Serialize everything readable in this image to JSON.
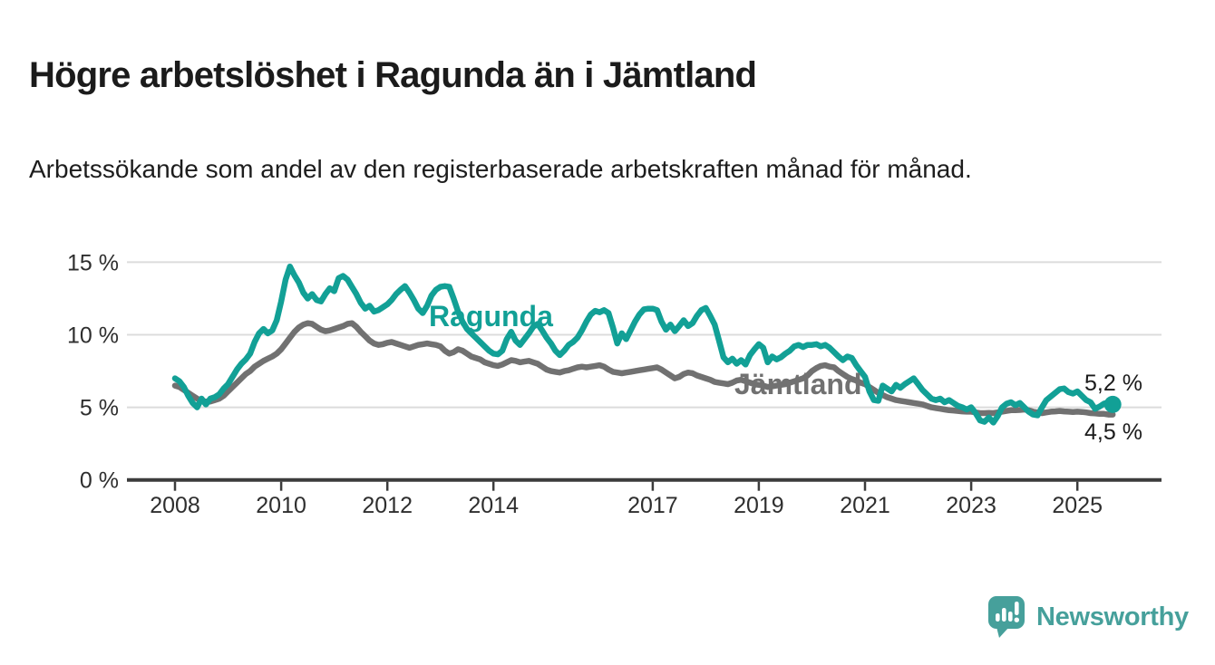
{
  "header": {
    "title": "Högre arbetslöshet i Ragunda än i Jämtland",
    "subtitle": "Arbetssökande som andel av den registerbaserade arbetskraften månad för månad."
  },
  "colors": {
    "ragunda": "#12a096",
    "jamtland": "#717171",
    "title": "#1b1b1b",
    "axis": "#3c3c3c",
    "grid": "#dcdcdc",
    "tick_label": "#2e2e2e",
    "value_label": "#1b1b1b",
    "logo": "#46a09b"
  },
  "chart_data": {
    "type": "line",
    "unit": "%",
    "frequency": "monthly",
    "x_start_year": 2008,
    "x_end_label_approx": "2025-09",
    "ylim": [
      0,
      16.5
    ],
    "grid": "horizontal",
    "legend_position": "inline-labels",
    "x_tick_labels": [
      "2008",
      "2010",
      "2012",
      "2014",
      "2017",
      "2019",
      "2021",
      "2023",
      "2025"
    ],
    "y_tick_labels": [
      {
        "value": 0,
        "label": "0 %"
      },
      {
        "value": 5,
        "label": "5 %"
      },
      {
        "value": 10,
        "label": "10 %"
      },
      {
        "value": 15,
        "label": "15 %"
      }
    ],
    "series": [
      {
        "name": "Ragunda",
        "color_key": "ragunda",
        "label_x": 473,
        "label_y": 360,
        "end_dot": true,
        "end_label": {
          "text": "5,2 %",
          "x": 1196,
          "y": 431
        },
        "latest_value": 5.2,
        "values": [
          7.0,
          6.8,
          6.4,
          5.8,
          5.3,
          5.0,
          5.6,
          5.2,
          5.6,
          5.7,
          5.9,
          6.3,
          6.6,
          7.1,
          7.6,
          8.0,
          8.3,
          8.7,
          9.5,
          10.1,
          10.4,
          10.1,
          10.3,
          11.0,
          12.3,
          13.8,
          14.7,
          14.1,
          13.6,
          12.9,
          12.5,
          12.8,
          12.4,
          12.3,
          12.8,
          13.2,
          13.0,
          13.9,
          14.05,
          13.8,
          13.3,
          12.8,
          12.2,
          11.8,
          12.0,
          11.6,
          11.7,
          11.9,
          12.1,
          12.4,
          12.8,
          13.1,
          13.35,
          12.9,
          12.4,
          11.8,
          11.5,
          12.0,
          12.7,
          13.1,
          13.3,
          13.35,
          13.3,
          12.5,
          11.6,
          10.9,
          10.4,
          10.1,
          9.8,
          9.5,
          9.2,
          8.9,
          8.7,
          8.65,
          8.9,
          9.7,
          10.2,
          9.6,
          9.3,
          9.7,
          10.1,
          10.55,
          10.75,
          10.3,
          9.8,
          9.4,
          8.9,
          8.6,
          8.9,
          9.3,
          9.5,
          9.8,
          10.3,
          10.9,
          11.4,
          11.65,
          11.55,
          11.7,
          11.5,
          10.5,
          9.4,
          10.1,
          9.7,
          10.3,
          10.9,
          11.4,
          11.75,
          11.8,
          11.8,
          11.7,
          10.9,
          10.35,
          10.7,
          10.25,
          10.6,
          11.0,
          10.6,
          10.8,
          11.3,
          11.7,
          11.85,
          11.3,
          10.7,
          9.6,
          8.45,
          8.1,
          8.35,
          8.0,
          8.25,
          7.95,
          8.6,
          9.0,
          9.35,
          9.1,
          8.1,
          8.5,
          8.3,
          8.45,
          8.7,
          8.9,
          9.2,
          9.3,
          9.15,
          9.3,
          9.3,
          9.35,
          9.2,
          9.3,
          9.1,
          8.8,
          8.5,
          8.25,
          8.5,
          8.4,
          7.9,
          7.5,
          7.1,
          6.1,
          5.5,
          5.45,
          6.5,
          6.3,
          6.1,
          6.55,
          6.35,
          6.6,
          6.8,
          7.0,
          6.6,
          6.2,
          5.9,
          5.6,
          5.5,
          5.6,
          5.35,
          5.5,
          5.3,
          5.1,
          5.0,
          4.85,
          5.0,
          4.6,
          4.1,
          4.0,
          4.3,
          3.95,
          4.4,
          5.0,
          5.25,
          5.35,
          5.15,
          5.3,
          5.0,
          4.7,
          4.5,
          4.45,
          5.0,
          5.5,
          5.75,
          6.0,
          6.25,
          6.3,
          6.05,
          5.95,
          6.1,
          5.8,
          5.5,
          5.35,
          4.9,
          5.05,
          5.25,
          5.35,
          5.2
        ]
      },
      {
        "name": "Jämtland",
        "color_key": "jamtland",
        "label_x": 810,
        "label_y": 435,
        "end_dot": false,
        "end_label": {
          "text": "4,5 %",
          "x": 1196,
          "y": 485
        },
        "latest_value": 4.5,
        "values": [
          6.5,
          6.4,
          6.2,
          6.0,
          5.8,
          5.6,
          5.45,
          5.4,
          5.4,
          5.5,
          5.6,
          5.8,
          6.1,
          6.4,
          6.7,
          7.0,
          7.3,
          7.5,
          7.8,
          8.0,
          8.2,
          8.35,
          8.5,
          8.7,
          9.0,
          9.4,
          9.8,
          10.2,
          10.5,
          10.7,
          10.8,
          10.75,
          10.55,
          10.35,
          10.25,
          10.3,
          10.4,
          10.5,
          10.6,
          10.75,
          10.8,
          10.55,
          10.2,
          9.9,
          9.6,
          9.4,
          9.3,
          9.35,
          9.45,
          9.5,
          9.4,
          9.3,
          9.2,
          9.1,
          9.2,
          9.3,
          9.35,
          9.4,
          9.35,
          9.3,
          9.2,
          8.9,
          8.7,
          8.8,
          9.0,
          8.9,
          8.7,
          8.5,
          8.4,
          8.3,
          8.1,
          8.0,
          7.9,
          7.85,
          7.95,
          8.1,
          8.25,
          8.2,
          8.1,
          8.15,
          8.2,
          8.1,
          8.0,
          7.8,
          7.6,
          7.5,
          7.45,
          7.4,
          7.5,
          7.55,
          7.65,
          7.75,
          7.8,
          7.75,
          7.8,
          7.85,
          7.9,
          7.8,
          7.6,
          7.45,
          7.4,
          7.35,
          7.4,
          7.45,
          7.5,
          7.55,
          7.6,
          7.65,
          7.7,
          7.75,
          7.6,
          7.4,
          7.2,
          7.0,
          7.1,
          7.3,
          7.4,
          7.35,
          7.2,
          7.1,
          7.0,
          6.9,
          6.75,
          6.7,
          6.65,
          6.6,
          6.7,
          6.85,
          6.9,
          6.8,
          6.7,
          6.6,
          6.55,
          6.5,
          6.4,
          6.45,
          6.5,
          6.55,
          6.6,
          6.7,
          6.8,
          6.9,
          7.0,
          7.2,
          7.5,
          7.7,
          7.85,
          7.9,
          7.8,
          7.75,
          7.5,
          7.3,
          7.1,
          6.95,
          6.85,
          6.7,
          6.6,
          6.4,
          6.2,
          6.0,
          5.85,
          5.7,
          5.6,
          5.5,
          5.45,
          5.4,
          5.35,
          5.3,
          5.25,
          5.2,
          5.1,
          5.0,
          4.95,
          4.9,
          4.85,
          4.8,
          4.78,
          4.75,
          4.72,
          4.7,
          4.7,
          4.65,
          4.6,
          4.6,
          4.62,
          4.6,
          4.65,
          4.7,
          4.75,
          4.8,
          4.8,
          4.82,
          4.85,
          4.8,
          4.7,
          4.65,
          4.6,
          4.65,
          4.7,
          4.72,
          4.75,
          4.72,
          4.7,
          4.68,
          4.7,
          4.68,
          4.65,
          4.6,
          4.58,
          4.55,
          4.55,
          4.5,
          4.5
        ]
      }
    ]
  },
  "footer": {
    "brand": "Newsworthy"
  }
}
